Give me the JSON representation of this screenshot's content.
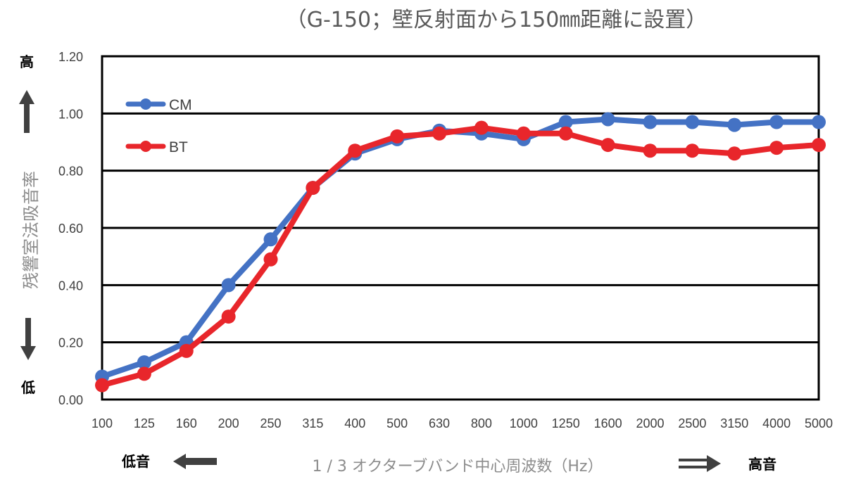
{
  "chart_data": {
    "type": "line",
    "title": "（G-150；壁反射面から150㎜距離に設置）",
    "xlabel": "1 / 3 オクターブバンド中心周波数（Hz）",
    "ylabel": "残響室法吸音率",
    "categories": [
      "100",
      "125",
      "160",
      "200",
      "250",
      "315",
      "400",
      "500",
      "630",
      "800",
      "1000",
      "1250",
      "1600",
      "2000",
      "2500",
      "3150",
      "4000",
      "5000"
    ],
    "ylim": [
      0,
      1.2
    ],
    "yticks": [
      "0.00",
      "0.20",
      "0.40",
      "0.60",
      "0.80",
      "1.00",
      "1.20"
    ],
    "grid": true,
    "legend_position": "top-left",
    "series": [
      {
        "name": "CM",
        "color": "#4472c4",
        "values": [
          0.08,
          0.13,
          0.2,
          0.4,
          0.56,
          0.74,
          0.86,
          0.91,
          0.94,
          0.93,
          0.91,
          0.97,
          0.98,
          0.97,
          0.97,
          0.96,
          0.97,
          0.97
        ]
      },
      {
        "name": "BT",
        "color": "#e8262b",
        "values": [
          0.05,
          0.09,
          0.17,
          0.29,
          0.49,
          0.74,
          0.87,
          0.92,
          0.93,
          0.95,
          0.93,
          0.93,
          0.89,
          0.87,
          0.87,
          0.86,
          0.88,
          0.89
        ]
      }
    ]
  },
  "annotations": {
    "y_high": "高",
    "y_low": "低",
    "x_low": "低音",
    "x_high": "高音"
  }
}
